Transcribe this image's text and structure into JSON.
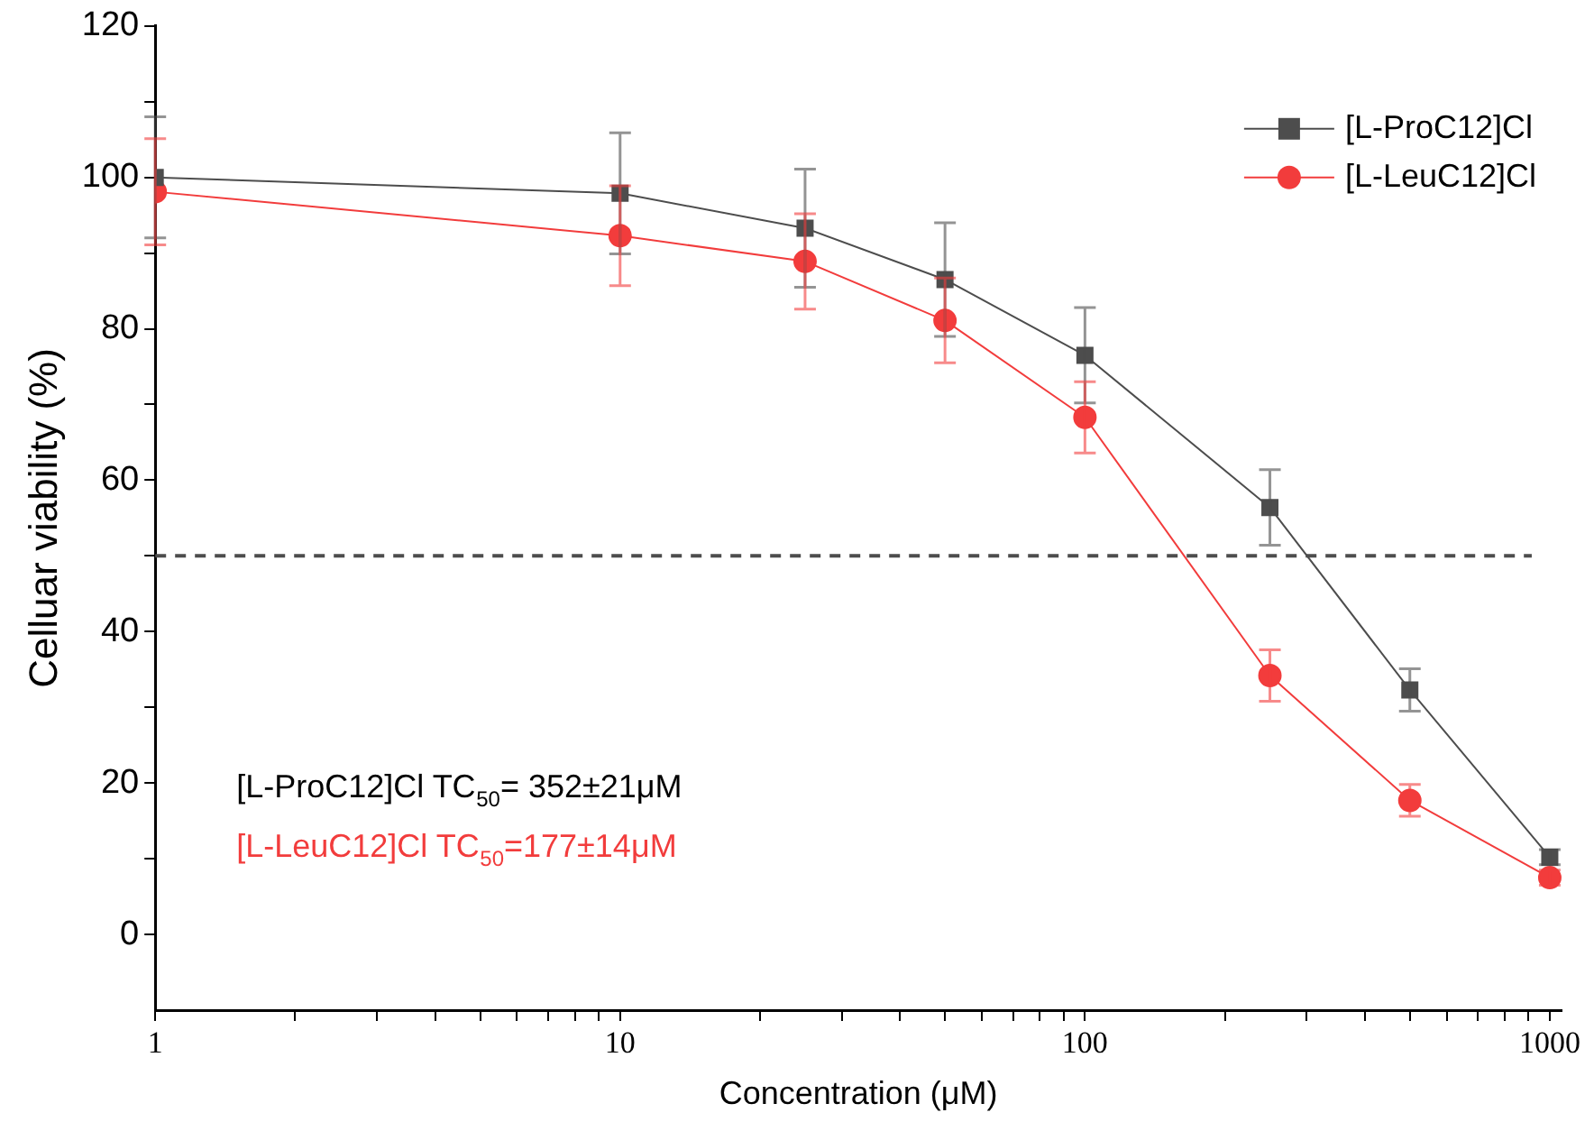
{
  "chart_data": {
    "type": "line",
    "xlabel": "Concentration (μM)",
    "ylabel": "Celluar viability (%)",
    "log": "x",
    "legend": "top right",
    "grid": false,
    "xlim": [
      1,
      1060
    ],
    "ylim": [
      -10,
      120
    ],
    "xticks": [
      1,
      {
        "value": 2,
        "label": null
      },
      {
        "value": 3,
        "label": null
      },
      {
        "value": 4,
        "label": null
      },
      {
        "value": 5,
        "label": null
      },
      {
        "value": 6,
        "label": null
      },
      {
        "value": 7,
        "label": null
      },
      {
        "value": 8,
        "label": null
      },
      {
        "value": 9,
        "label": null
      },
      10,
      {
        "value": 20,
        "label": null
      },
      {
        "value": 30,
        "label": null
      },
      {
        "value": 40,
        "label": null
      },
      {
        "value": 50,
        "label": null
      },
      {
        "value": 60,
        "label": null
      },
      {
        "value": 70,
        "label": null
      },
      {
        "value": 80,
        "label": null
      },
      {
        "value": 90,
        "label": null
      },
      100,
      {
        "value": 200,
        "label": null
      },
      {
        "value": 300,
        "label": null
      },
      {
        "value": 400,
        "label": null
      },
      {
        "value": 500,
        "label": null
      },
      {
        "value": 600,
        "label": null
      },
      {
        "value": 700,
        "label": null
      },
      {
        "value": 800,
        "label": null
      },
      {
        "value": 900,
        "label": null
      },
      1000
    ],
    "yticks": [
      0,
      {
        "value": 10,
        "label": null
      },
      20,
      {
        "value": 30,
        "label": null
      },
      40,
      {
        "value": 50,
        "label": null
      },
      60,
      {
        "value": 70,
        "label": null
      },
      80,
      {
        "value": 90,
        "label": null
      },
      100,
      {
        "value": 110,
        "label": null
      },
      120
    ],
    "x": [
      1,
      10,
      25,
      50,
      100,
      250,
      500,
      1000
    ],
    "series": [
      {
        "name": "[L-ProC12]Cl",
        "color": "#4d4d4d",
        "marker": "square",
        "values": [
          100,
          97.9,
          93.3,
          86.5,
          76.5,
          56.4,
          32.3,
          10.2
        ],
        "errors": [
          8,
          8,
          7.8,
          7.5,
          6.3,
          5,
          2.8,
          1
        ]
      },
      {
        "name": "[L-LeuC12]Cl",
        "color": "#f23c3c",
        "marker": "circle",
        "values": [
          98.1,
          92.3,
          88.9,
          81.1,
          68.3,
          34.2,
          17.7,
          7.5
        ],
        "errors": [
          7,
          6.6,
          6.3,
          5.6,
          4.7,
          3.4,
          2.1,
          1
        ]
      }
    ],
    "ref_lines": [
      {
        "axis": "y",
        "value": 50,
        "label": null,
        "color": "#4d4d4d",
        "line_style": "dashed"
      }
    ],
    "annotations": [
      "[L-ProC12]Cl TC$_{50}$= 352±21μM",
      "[L-LeuC12]Cl TC$_{50}$=177±14μM"
    ]
  }
}
